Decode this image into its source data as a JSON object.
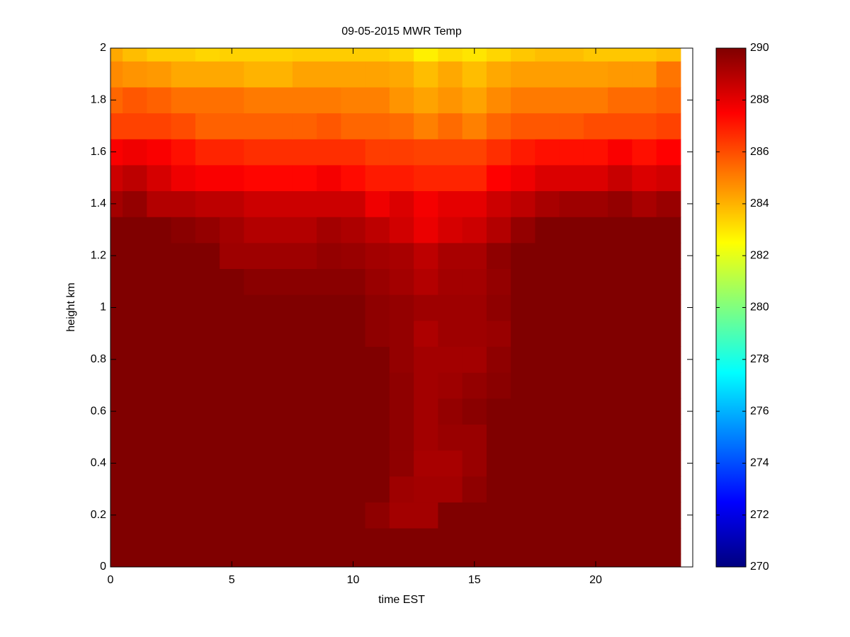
{
  "chart_data": {
    "type": "heatmap",
    "title": "09-05-2015 MWR Temp",
    "xlabel": "time EST",
    "ylabel": "height km",
    "colormap": "jet",
    "x": [
      0,
      1,
      2,
      3,
      4,
      5,
      6,
      7,
      8,
      9,
      10,
      11,
      12,
      13,
      14,
      15,
      16,
      17,
      18,
      19,
      20,
      21,
      22,
      23
    ],
    "y": [
      0,
      0.1,
      0.2,
      0.3,
      0.4,
      0.5,
      0.6,
      0.7,
      0.8,
      0.9,
      1,
      1.1,
      1.2,
      1.3,
      1.4,
      1.5,
      1.6,
      1.7,
      1.8,
      1.9,
      2
    ],
    "z": [
      [
        290.5,
        290.5,
        290.5,
        290.5,
        290.5,
        290.5,
        290.5,
        290.5,
        290.5,
        290.5,
        290.5,
        290.5,
        290.5,
        290.5,
        290.5,
        290.5,
        290.5,
        290.5,
        290.5,
        290.5,
        290.5,
        290.5,
        290.5,
        290.5
      ],
      [
        290.5,
        290.5,
        290.5,
        290.5,
        290.5,
        290.5,
        290.5,
        290.5,
        290.5,
        290.5,
        290.5,
        290.5,
        290.5,
        290.5,
        290.5,
        290.5,
        290.5,
        290.5,
        290.5,
        290.5,
        290.5,
        290.5,
        290.5,
        290.5
      ],
      [
        290.5,
        290.5,
        290.5,
        290.5,
        290.5,
        290.5,
        290.5,
        290.5,
        290.5,
        290.5,
        290.5,
        289.7,
        289.3,
        289.3,
        290.5,
        290.5,
        290.5,
        290.5,
        290.5,
        290.5,
        290.5,
        290.5,
        290.5,
        290.5
      ],
      [
        290.5,
        290.5,
        290.5,
        290.5,
        290.5,
        290.5,
        290.5,
        290.5,
        290.5,
        290.5,
        290.5,
        290.5,
        289.4,
        289.3,
        289.3,
        289.7,
        290.5,
        290.5,
        290.5,
        290.5,
        290.5,
        290.5,
        290.5,
        290.5
      ],
      [
        290.5,
        290.5,
        290.5,
        290.5,
        290.5,
        290.5,
        290.5,
        290.5,
        290.5,
        290.5,
        290.5,
        290.5,
        289.7,
        289.2,
        289.2,
        289.5,
        290.5,
        290.5,
        290.5,
        290.5,
        290.5,
        290.5,
        290.5,
        290.5
      ],
      [
        290.5,
        290.5,
        290.5,
        290.5,
        290.5,
        290.5,
        290.5,
        290.5,
        290.5,
        290.5,
        290.5,
        290.5,
        289.7,
        289.3,
        289.5,
        289.5,
        290.5,
        290.5,
        290.5,
        290.5,
        290.5,
        290.5,
        290.5,
        290.5
      ],
      [
        290.5,
        290.5,
        290.5,
        290.5,
        290.5,
        290.5,
        290.5,
        290.5,
        290.5,
        290.5,
        290.5,
        290.5,
        289.7,
        289.3,
        289.6,
        289.8,
        290.5,
        290.5,
        290.5,
        290.5,
        290.5,
        290.5,
        290.5,
        290.5
      ],
      [
        290.5,
        290.5,
        290.5,
        290.5,
        290.5,
        290.5,
        290.5,
        290.5,
        290.5,
        290.5,
        290.5,
        290.5,
        289.7,
        289.3,
        289.4,
        289.6,
        289.8,
        290.5,
        290.5,
        290.5,
        290.5,
        290.5,
        290.5,
        290.5
      ],
      [
        290.5,
        290.5,
        290.5,
        290.5,
        290.5,
        290.5,
        290.5,
        290.5,
        290.5,
        290.5,
        290.5,
        290.5,
        289.6,
        289.3,
        289.3,
        289.3,
        289.7,
        290.5,
        290.5,
        290.5,
        290.5,
        290.5,
        290.5,
        290.5
      ],
      [
        290.5,
        290.5,
        290.5,
        290.5,
        290.5,
        290.5,
        290.5,
        290.5,
        290.5,
        290.5,
        290.5,
        289.7,
        289.6,
        289.1,
        289.4,
        289.4,
        289.5,
        290.5,
        290.5,
        290.5,
        290.5,
        290.5,
        290.5,
        290.5
      ],
      [
        290.5,
        290.5,
        290.5,
        290.5,
        290.5,
        290.5,
        290.5,
        290.5,
        290.5,
        290.5,
        290.5,
        289.7,
        289.6,
        289.4,
        289.4,
        289.4,
        289.7,
        290.5,
        290.5,
        290.5,
        290.5,
        290.5,
        290.5,
        290.5
      ],
      [
        290.5,
        290.5,
        290.5,
        290.5,
        290.5,
        290.5,
        289.8,
        289.8,
        289.8,
        289.8,
        289.8,
        289.5,
        289.3,
        289.0,
        289.3,
        289.3,
        289.6,
        290.5,
        290.5,
        290.5,
        290.5,
        290.5,
        290.5,
        290.5
      ],
      [
        290.5,
        290.5,
        290.5,
        290.5,
        290.1,
        289.4,
        289.4,
        289.4,
        289.4,
        289.6,
        289.5,
        289.3,
        289.2,
        288.8,
        289.2,
        289.2,
        289.7,
        290.5,
        290.5,
        290.5,
        290.5,
        290.5,
        290.5,
        290.5
      ],
      [
        290.5,
        290.5,
        290.1,
        289.8,
        289.6,
        289.3,
        289.0,
        289.0,
        289.0,
        289.3,
        289.1,
        288.8,
        288.4,
        287.9,
        288.3,
        288.5,
        289.0,
        289.6,
        290.1,
        290.5,
        290.5,
        290.5,
        290.1,
        290.1
      ],
      [
        289.3,
        289.6,
        289.0,
        289.0,
        288.8,
        288.8,
        288.5,
        288.5,
        288.5,
        288.5,
        288.5,
        287.8,
        288.2,
        287.7,
        288.0,
        288.0,
        288.5,
        288.8,
        289.2,
        289.4,
        289.4,
        289.6,
        289.2,
        289.5
      ],
      [
        288.5,
        288.8,
        288.3,
        287.8,
        287.6,
        287.6,
        287.4,
        287.4,
        287.4,
        287.7,
        287.3,
        287.0,
        287.0,
        286.8,
        286.8,
        286.8,
        287.5,
        287.8,
        288.2,
        288.2,
        288.2,
        288.6,
        288.2,
        288.4
      ],
      [
        287.6,
        287.8,
        287.6,
        287.2,
        286.8,
        286.8,
        286.6,
        286.6,
        286.6,
        286.6,
        286.6,
        286.3,
        286.3,
        286.2,
        286.2,
        286.2,
        286.6,
        287.0,
        287.2,
        287.2,
        287.2,
        287.6,
        287.2,
        287.5
      ],
      [
        286.2,
        286.2,
        286.2,
        286.0,
        285.6,
        285.6,
        285.6,
        285.6,
        285.6,
        285.8,
        285.5,
        285.5,
        285.4,
        285.0,
        285.4,
        285.0,
        285.5,
        285.8,
        285.8,
        285.8,
        286.0,
        286.0,
        286.0,
        286.2
      ],
      [
        285.5,
        285.8,
        285.6,
        285.3,
        285.3,
        285.3,
        285.1,
        285.1,
        285.1,
        285.1,
        285.0,
        285.0,
        284.6,
        284.3,
        284.6,
        284.3,
        284.8,
        285.1,
        285.1,
        285.1,
        285.1,
        285.4,
        285.4,
        285.6
      ],
      [
        284.8,
        284.6,
        284.5,
        284.2,
        284.2,
        284.2,
        284.0,
        284.0,
        284.3,
        284.3,
        284.3,
        284.3,
        284.2,
        283.8,
        284.2,
        283.8,
        284.2,
        284.4,
        284.4,
        284.4,
        284.4,
        284.5,
        284.5,
        285.2
      ],
      [
        284.2,
        283.8,
        283.5,
        283.5,
        283.3,
        283.4,
        283.4,
        283.4,
        283.5,
        283.5,
        283.5,
        283.5,
        283.3,
        282.8,
        283.2,
        283.0,
        283.3,
        283.6,
        283.8,
        283.8,
        283.6,
        283.6,
        283.6,
        283.8
      ]
    ],
    "xlim": [
      0,
      24
    ],
    "ylim": [
      0,
      2
    ],
    "xticks": [
      0,
      5,
      10,
      15,
      20
    ],
    "yticks": [
      0,
      0.2,
      0.4,
      0.6,
      0.8,
      1,
      1.2,
      1.4,
      1.6,
      1.8,
      2
    ],
    "clim": [
      270,
      290
    ],
    "cticks": [
      270,
      272,
      274,
      276,
      278,
      280,
      282,
      284,
      286,
      288,
      290
    ]
  }
}
